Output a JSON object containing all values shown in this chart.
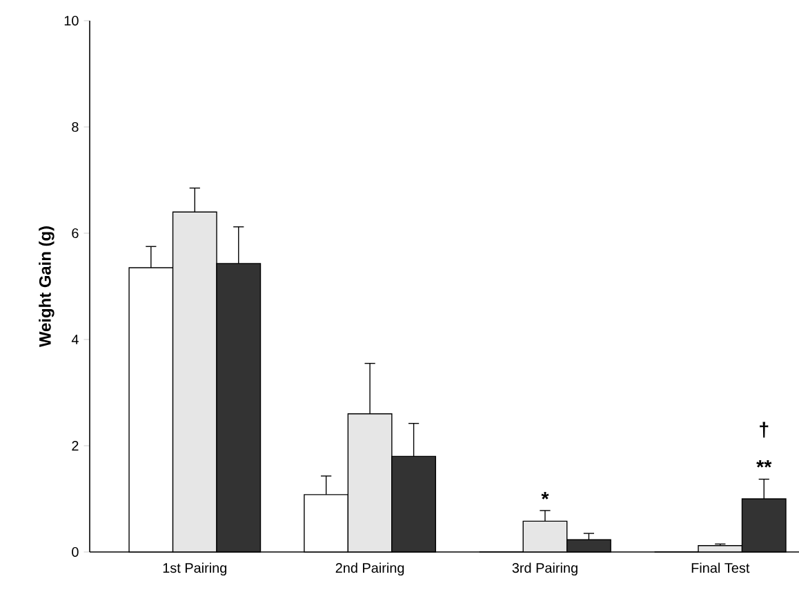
{
  "chart_data": {
    "type": "bar",
    "ylabel": "Weight Gain (g)",
    "categories": [
      "1st Pairing",
      "2nd Pairing",
      "3rd Pairing",
      "Final Test"
    ],
    "series": [
      {
        "color": "#ffffff",
        "values": [
          5.35,
          1.08,
          0,
          0
        ],
        "errors": [
          [
            5.35,
            5.75
          ],
          [
            1.08,
            1.43
          ],
          null,
          null
        ]
      },
      {
        "color": "#e6e6e6",
        "values": [
          6.4,
          2.6,
          0.58,
          0.12
        ],
        "errors": [
          [
            6.4,
            6.85
          ],
          [
            2.6,
            3.55
          ],
          [
            0.58,
            0.78
          ],
          [
            0.12,
            0.15
          ]
        ]
      },
      {
        "color": "#333333",
        "values": [
          5.43,
          1.8,
          0.23,
          1.0
        ],
        "errors": [
          [
            5.43,
            6.12
          ],
          [
            1.8,
            2.42
          ],
          [
            0.23,
            0.35
          ],
          [
            1.0,
            1.37
          ]
        ]
      }
    ],
    "ylim": [
      0,
      10
    ],
    "yticks": [
      0,
      2,
      4,
      6,
      8,
      10
    ],
    "grid": false,
    "annotations": [
      "*",
      "**",
      "†"
    ]
  }
}
